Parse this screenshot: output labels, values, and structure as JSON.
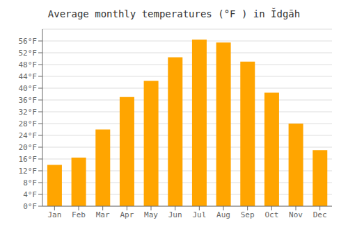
{
  "chart_data": {
    "type": "bar",
    "title": "Average monthly temperatures (°F ) in Ĭdgāh",
    "categories": [
      "Jan",
      "Feb",
      "Mar",
      "Apr",
      "May",
      "Jun",
      "Jul",
      "Aug",
      "Sep",
      "Oct",
      "Nov",
      "Dec"
    ],
    "values": [
      14,
      16.5,
      26,
      37,
      42.5,
      50.5,
      56.5,
      55.5,
      49,
      38.5,
      28,
      19
    ],
    "color": "#FFA500",
    "ylim": [
      0,
      60
    ],
    "yticks": [
      {
        "value": 0,
        "label": "0°F"
      },
      {
        "value": 4,
        "label": "4°F"
      },
      {
        "value": 8,
        "label": "8°F"
      },
      {
        "value": 12,
        "label": "12°F"
      },
      {
        "value": 16,
        "label": "16°F"
      },
      {
        "value": 20,
        "label": "20°F"
      },
      {
        "value": 24,
        "label": "24°F"
      },
      {
        "value": 28,
        "label": "28°F"
      },
      {
        "value": 32,
        "label": "32°F"
      },
      {
        "value": 36,
        "label": "36°F"
      },
      {
        "value": 40,
        "label": "40°F"
      },
      {
        "value": 44,
        "label": "44°F"
      },
      {
        "value": 48,
        "label": "48°F"
      },
      {
        "value": 52,
        "label": "52°F"
      },
      {
        "value": 56,
        "label": "56°F"
      }
    ],
    "grid": true
  }
}
